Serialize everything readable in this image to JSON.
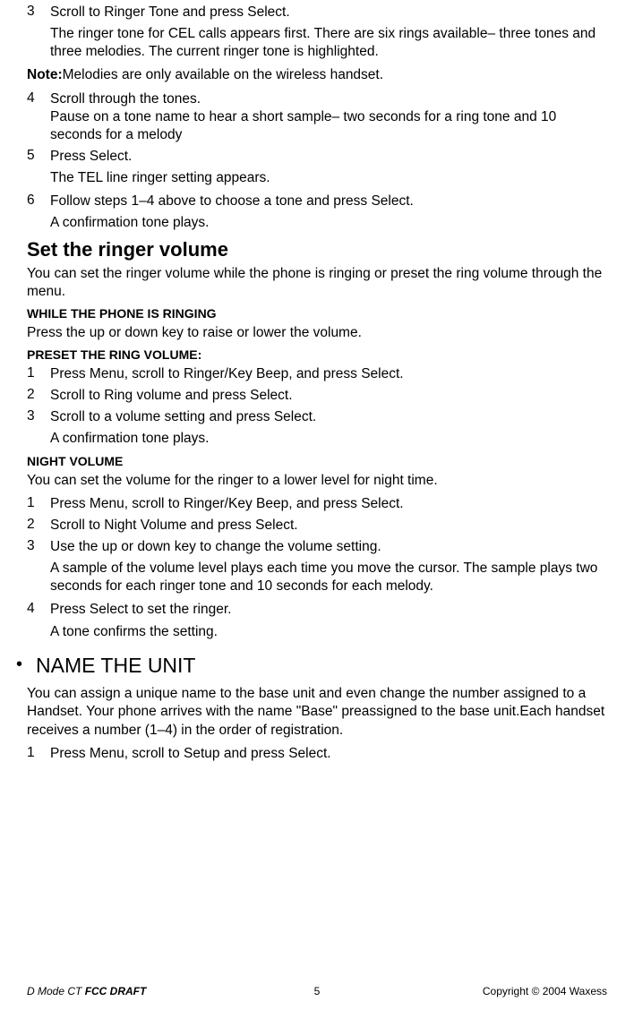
{
  "step3": {
    "num": "3",
    "text": "Scroll to Ringer Tone and press Select."
  },
  "step3_sub": "The ringer tone for CEL calls appears first. There are six rings available– three tones and three melodies. The current ringer tone is highlighted.",
  "note": {
    "label": "Note:",
    "text": "Melodies are only available on the wireless handset."
  },
  "step4": {
    "num": "4",
    "text": "Scroll through the tones.\nPause on a tone name to hear a short sample– two seconds for a ring tone and 10 seconds for a melody"
  },
  "step5": {
    "num": "5",
    "text": "Press Select."
  },
  "step5_sub": "The TEL line ringer setting appears.",
  "step6": {
    "num": "6",
    "text": "Follow steps 1–4 above to choose a tone and press Select."
  },
  "step6_sub": "A confirmation tone plays.",
  "h2_ringer": "Set the ringer volume",
  "ringer_para": "You can set the ringer volume while the phone is ringing or preset the ring volume through the menu.",
  "h3_while": "WHILE THE PHONE IS RINGING",
  "while_text": "Press the up or down key to raise or lower the volume.",
  "h3_preset": "PRESET THE RING VOLUME:",
  "preset1": {
    "num": "1",
    "text": "Press Menu, scroll to Ringer/Key Beep, and press Select."
  },
  "preset2": {
    "num": "2",
    "text": "Scroll to Ring volume and press Select."
  },
  "preset3": {
    "num": "3",
    "text": "Scroll to a volume setting and press Select."
  },
  "preset3_sub": "A confirmation tone plays.",
  "h3_night": "NIGHT VOLUME",
  "night_para": "You can set the volume for the ringer to a lower level for night time.",
  "night1": {
    "num": "1",
    "text": "Press Menu, scroll to Ringer/Key Beep, and press Select."
  },
  "night2": {
    "num": "2",
    "text": "Scroll to Night Volume and press Select."
  },
  "night3": {
    "num": "3",
    "text": "Use the up or down key to change the volume setting."
  },
  "night3_sub": "A sample of the volume level plays each time you move the cursor. The sample plays two seconds for each ringer tone and 10 seconds for each melody.",
  "night4": {
    "num": "4",
    "text": "Press Select to set the ringer."
  },
  "night4_sub": "A tone confirms the setting.",
  "h1_name": "NAME THE UNIT",
  "name_para": "You can assign a unique name to the base unit and even change the number assigned to a Handset. Your phone arrives with the name \"Base\" preassigned to the base unit.Each handset receives a number (1–4) in the order of registration.",
  "name1": {
    "num": "1",
    "text": "Press Menu, scroll to Setup and press Select."
  },
  "footer": {
    "left_pre": "D Mode CT ",
    "left_bold": "FCC DRAFT",
    "page": "5",
    "right": "Copyright © 2004 Waxess"
  }
}
